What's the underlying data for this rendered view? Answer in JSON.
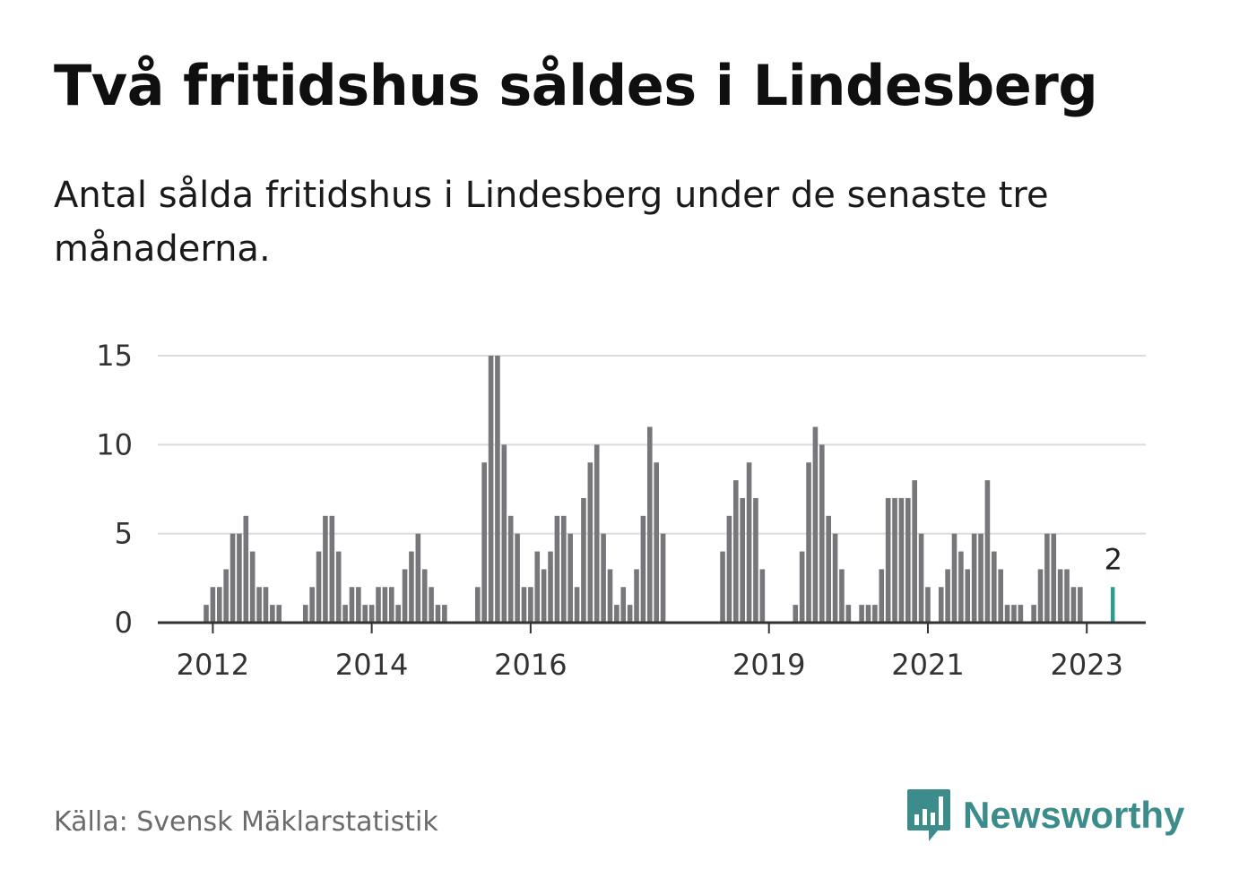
{
  "header": {
    "title": "Två fritidshus såldes i Lindesberg",
    "subtitle": "Antal sålda fritidshus i Lindesberg under de senaste tre månaderna."
  },
  "footer": {
    "source": "Källa: Svensk Mäklarstatistik",
    "brand": "Newsworthy"
  },
  "colors": {
    "bar": "#77777b",
    "highlight": "#2a9d8f",
    "grid": "#dcdcdc",
    "axis": "#333333",
    "brand": "#3c8c8c"
  },
  "chart_data": {
    "type": "bar",
    "x_tick_labels": [
      "2012",
      "2014",
      "2016",
      "2019",
      "2021",
      "2023"
    ],
    "y_ticks": [
      0,
      5,
      10,
      15
    ],
    "ylim": [
      0,
      15
    ],
    "grid": true,
    "start": "2011-12",
    "values": [
      1,
      2,
      2,
      3,
      5,
      5,
      6,
      4,
      2,
      2,
      1,
      1,
      null,
      null,
      null,
      1,
      2,
      4,
      6,
      6,
      4,
      1,
      2,
      2,
      1,
      1,
      2,
      2,
      2,
      1,
      3,
      4,
      5,
      3,
      2,
      1,
      1,
      null,
      null,
      null,
      null,
      2,
      9,
      15,
      15,
      10,
      6,
      5,
      2,
      2,
      4,
      3,
      4,
      6,
      6,
      5,
      2,
      7,
      9,
      10,
      5,
      3,
      1,
      2,
      1,
      3,
      6,
      11,
      9,
      5,
      null,
      null,
      null,
      null,
      null,
      null,
      null,
      null,
      4,
      6,
      8,
      7,
      9,
      7,
      3,
      null,
      null,
      null,
      null,
      1,
      4,
      9,
      11,
      10,
      6,
      5,
      3,
      1,
      null,
      1,
      1,
      1,
      3,
      7,
      7,
      7,
      7,
      8,
      5,
      2,
      null,
      2,
      3,
      5,
      4,
      3,
      5,
      5,
      8,
      4,
      3,
      1,
      1,
      1,
      null,
      1,
      3,
      5,
      5,
      3,
      3,
      2,
      2,
      null,
      null,
      null,
      null,
      2
    ],
    "highlight": {
      "label": "2",
      "value": 2
    }
  }
}
